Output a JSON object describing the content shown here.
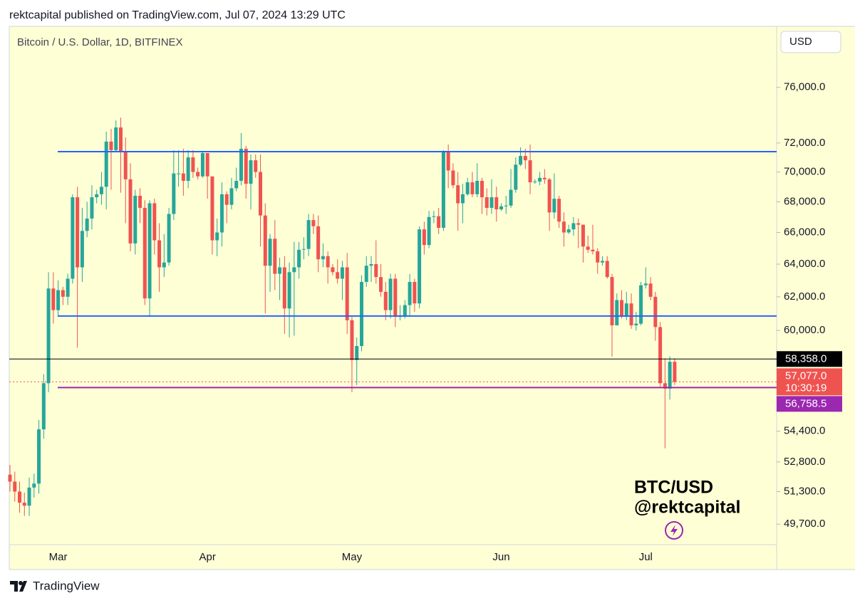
{
  "header": "rektcapital published on TradingView.com, Jul 07, 2024 13:29 UTC",
  "footer": {
    "brand": "TradingView"
  },
  "chart_data": {
    "type": "candlestick",
    "title": "Bitcoin / U.S. Dollar, 1D, BITFINEX",
    "currency": "USD",
    "annotations": [
      "BTC/USD",
      "@rektcapital"
    ],
    "log_scale": true,
    "up_color": "#26a69a",
    "down_color": "#ef5350",
    "ylim": [
      48720,
      80650
    ],
    "yticks": [
      {
        "value": 76000,
        "label": "76,000.0"
      },
      {
        "value": 72000,
        "label": "72,000.0"
      },
      {
        "value": 70000,
        "label": "70,000.0"
      },
      {
        "value": 68000,
        "label": "68,000.0"
      },
      {
        "value": 66000,
        "label": "66,000.0"
      },
      {
        "value": 64000,
        "label": "64,000.0"
      },
      {
        "value": 62000,
        "label": "62,000.0"
      },
      {
        "value": 60000,
        "label": "60,000.0"
      },
      {
        "value": 54400,
        "label": "54,400.0"
      },
      {
        "value": 52800,
        "label": "52,800.0"
      },
      {
        "value": 51300,
        "label": "51,300.0"
      },
      {
        "value": 49700,
        "label": "49,700.0"
      }
    ],
    "levels": [
      {
        "value": 71400,
        "color": "#2962ff"
      },
      {
        "value": 60850,
        "color": "#2962ff"
      }
    ],
    "price_lines": [
      {
        "value": 58358,
        "label": "58,358.0",
        "color": "#000000"
      },
      {
        "value": 57077,
        "label": "57,077.0",
        "countdown": "10:30:19",
        "color": "#ef5350",
        "style": "dotted"
      },
      {
        "value": 56758.5,
        "label": "56,758.5",
        "color": "#9c27b0"
      }
    ],
    "categories": [
      null,
      null,
      null,
      null,
      null,
      null,
      null,
      null,
      null,
      null,
      "Mar",
      null,
      null,
      null,
      null,
      null,
      null,
      null,
      null,
      null,
      null,
      null,
      null,
      null,
      null,
      null,
      null,
      null,
      null,
      null,
      null,
      null,
      null,
      null,
      null,
      null,
      null,
      null,
      null,
      null,
      null,
      "Apr",
      null,
      null,
      null,
      null,
      null,
      null,
      null,
      null,
      null,
      null,
      null,
      null,
      null,
      null,
      null,
      null,
      null,
      null,
      null,
      null,
      null,
      null,
      null,
      null,
      null,
      null,
      null,
      null,
      null,
      "May",
      null,
      null,
      null,
      null,
      null,
      null,
      null,
      null,
      null,
      null,
      null,
      null,
      null,
      null,
      null,
      null,
      null,
      null,
      null,
      null,
      null,
      null,
      null,
      null,
      null,
      null,
      null,
      null,
      null,
      null,
      "Jun",
      null,
      null,
      null,
      null,
      null,
      null,
      null,
      null,
      null,
      null,
      null,
      null,
      null,
      null,
      null,
      null,
      null,
      null,
      null,
      null,
      null,
      null,
      null,
      null,
      null,
      null,
      null,
      null,
      null,
      "Jul",
      null,
      null,
      null,
      null,
      null,
      null
    ],
    "open": [
      52150,
      51800,
      51300,
      50750,
      50600,
      51500,
      51700,
      54500,
      57000,
      62500,
      61200,
      62400,
      62000,
      63100,
      68300,
      63800,
      66100,
      66900,
      68300,
      68500,
      69000,
      72100,
      71500,
      73100,
      71400,
      69500,
      65300,
      68400,
      67600,
      61900,
      67900,
      65500,
      63800,
      64100,
      67200,
      69900,
      69900,
      69400,
      71000,
      70000,
      69700,
      71300,
      69700,
      65500,
      66000,
      68500,
      67800,
      68900,
      69400,
      71600,
      69200,
      70800,
      70000,
      67100,
      63900,
      65600,
      63400,
      63800,
      61300,
      63500,
      63800,
      64950,
      64950,
      66800,
      66400,
      64300,
      64500,
      63800,
      63500,
      63100,
      63800,
      60600,
      58300,
      59100,
      62900,
      63900,
      64000,
      63200,
      62300,
      61200,
      63100,
      60800,
      60850,
      61500,
      62900,
      61600,
      66200,
      65200,
      67000,
      67050,
      66300,
      71400,
      70100,
      69100,
      67900,
      68500,
      69300,
      68500,
      69400,
      68300,
      67600,
      68300,
      67500,
      67700,
      67750,
      68800,
      70500,
      71100,
      70800,
      69300,
      69350,
      69600,
      69500,
      67300,
      68200,
      66700,
      66000,
      66200,
      66600,
      66500,
      65100,
      64900,
      64800,
      64100,
      64200,
      63200,
      60300,
      61800,
      60800,
      61600,
      60300,
      60400,
      62700,
      62800,
      62000,
      60200,
      57000,
      56700,
      58200
    ],
    "high": [
      52650,
      52300,
      51800,
      51250,
      52000,
      52200,
      55000,
      57500,
      63500,
      63500,
      63000,
      62600,
      63400,
      68500,
      69000,
      67600,
      68000,
      69100,
      68800,
      70000,
      72800,
      73000,
      73600,
      73800,
      72400,
      70600,
      68800,
      68900,
      68100,
      68100,
      68200,
      66600,
      65900,
      67600,
      71500,
      71500,
      71600,
      71500,
      71500,
      70300,
      71400,
      71300,
      69700,
      66900,
      69300,
      68700,
      69600,
      70300,
      72700,
      71800,
      71200,
      71200,
      71200,
      67900,
      65900,
      66800,
      64400,
      64500,
      64100,
      65400,
      65400,
      65700,
      67200,
      67200,
      67100,
      65300,
      64800,
      64000,
      64300,
      64200,
      64700,
      60800,
      59600,
      63300,
      64500,
      64500,
      65500,
      64000,
      62900,
      63400,
      63400,
      61500,
      61800,
      63400,
      63100,
      66400,
      66700,
      67400,
      67400,
      67600,
      71500,
      71900,
      70600,
      70000,
      69200,
      69600,
      70000,
      70600,
      69600,
      68900,
      69500,
      69000,
      67900,
      68400,
      70200,
      71000,
      71700,
      71600,
      71900,
      69500,
      70000,
      70200,
      69600,
      69900,
      68400,
      67300,
      66500,
      67000,
      66900,
      66500,
      65800,
      66500,
      65000,
      64500,
      64500,
      63400,
      62200,
      62400,
      62300,
      62200,
      61100,
      62900,
      63800,
      63200,
      62300,
      60500,
      58400,
      58500,
      58400
    ],
    "low": [
      51300,
      50800,
      50250,
      50100,
      50100,
      51000,
      51200,
      54000,
      56500,
      60400,
      60800,
      61500,
      61500,
      62800,
      59000,
      62900,
      65700,
      66200,
      67900,
      67800,
      67500,
      68800,
      71400,
      68600,
      66600,
      64800,
      64600,
      66600,
      61500,
      60800,
      64600,
      62300,
      63200,
      63900,
      66800,
      69000,
      68400,
      68900,
      69600,
      69500,
      69600,
      68200,
      64600,
      64500,
      65100,
      66600,
      67500,
      68700,
      69100,
      68200,
      67500,
      69600,
      65100,
      61000,
      62300,
      62400,
      61800,
      59800,
      59600,
      59700,
      63100,
      64300,
      64500,
      65900,
      63500,
      63800,
      62800,
      63300,
      62800,
      61800,
      59800,
      56500,
      56900,
      58800,
      62600,
      62900,
      62800,
      62000,
      60600,
      60700,
      60200,
      60600,
      60700,
      60800,
      61100,
      61300,
      64600,
      65000,
      66600,
      65900,
      66100,
      68900,
      68900,
      66100,
      66600,
      68400,
      68300,
      68300,
      67200,
      67100,
      67200,
      66700,
      67400,
      67200,
      67600,
      68600,
      70400,
      70200,
      68500,
      69200,
      69100,
      69200,
      66100,
      66900,
      66300,
      65100,
      65900,
      65800,
      65000,
      64100,
      64700,
      64600,
      63400,
      63900,
      63100,
      58500,
      60300,
      60700,
      60600,
      60100,
      60000,
      60300,
      62500,
      61800,
      59400,
      56800,
      53500,
      56100,
      56900
    ],
    "close": [
      51800,
      51300,
      50750,
      50600,
      51500,
      51700,
      54500,
      57000,
      62500,
      61200,
      62400,
      62000,
      63100,
      68300,
      63800,
      66100,
      66900,
      68300,
      68500,
      69000,
      72100,
      71500,
      73100,
      71400,
      69500,
      65300,
      68400,
      67600,
      61900,
      67900,
      65500,
      63800,
      64100,
      67200,
      69900,
      69900,
      69400,
      71000,
      70000,
      69700,
      71300,
      69700,
      65500,
      66000,
      68500,
      67800,
      68900,
      69400,
      71600,
      69200,
      70800,
      70000,
      67100,
      63900,
      65600,
      63400,
      63800,
      61300,
      63500,
      63800,
      64900,
      64950,
      66800,
      66400,
      64300,
      64500,
      63800,
      63500,
      63100,
      63800,
      60600,
      58300,
      59100,
      62900,
      63900,
      64000,
      63200,
      62300,
      61200,
      63100,
      60800,
      60850,
      61500,
      62900,
      61600,
      66200,
      65200,
      67000,
      67050,
      66300,
      71400,
      70100,
      69100,
      67900,
      68500,
      69300,
      68500,
      69400,
      68300,
      67600,
      68300,
      67500,
      67700,
      67750,
      68800,
      70500,
      71100,
      70800,
      69300,
      69350,
      69600,
      69500,
      67300,
      68200,
      66700,
      66000,
      66200,
      66600,
      66500,
      65100,
      64900,
      64800,
      64100,
      64200,
      63200,
      60300,
      61800,
      60800,
      61600,
      60300,
      60400,
      62700,
      62800,
      62000,
      60200,
      57000,
      56700,
      58200,
      57077
    ]
  }
}
